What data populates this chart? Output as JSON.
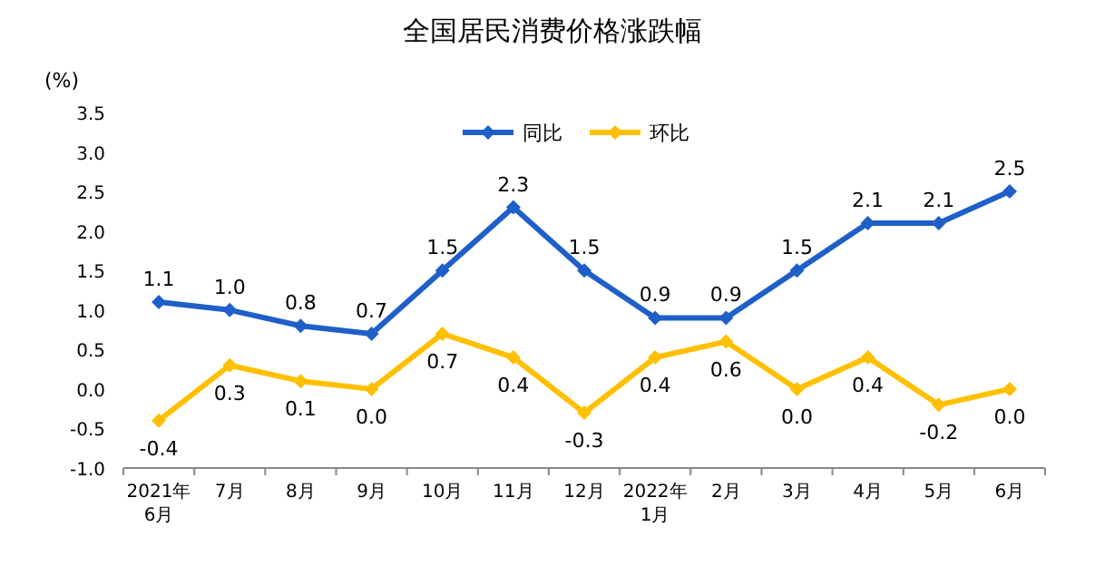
{
  "chart_data": {
    "type": "line",
    "title": "全国居民消费价格涨跌幅",
    "ylabel": "(%)",
    "categories": [
      "2021年\n6月",
      "7月",
      "8月",
      "9月",
      "10月",
      "11月",
      "12月",
      "2022年\n1月",
      "2月",
      "3月",
      "4月",
      "5月",
      "6月"
    ],
    "series": [
      {
        "name": "同比",
        "color": "#1f5fc8",
        "values": [
          1.1,
          1.0,
          0.8,
          0.7,
          1.5,
          2.3,
          1.5,
          0.9,
          0.9,
          1.5,
          2.1,
          2.1,
          2.5
        ],
        "value_labels": [
          "1.1",
          "1.0",
          "0.8",
          "0.7",
          "1.5",
          "2.3",
          "1.5",
          "0.9",
          "0.9",
          "1.5",
          "2.1",
          "2.1",
          "2.5"
        ]
      },
      {
        "name": "环比",
        "color": "#ffc000",
        "values": [
          -0.4,
          0.3,
          0.1,
          0.0,
          0.7,
          0.4,
          -0.3,
          0.4,
          0.6,
          0.0,
          0.4,
          -0.2,
          0.0
        ],
        "value_labels": [
          "-0.4",
          "0.3",
          "0.1",
          "0.0",
          "0.7",
          "0.4",
          "-0.3",
          "0.4",
          "0.6",
          "0.0",
          "0.4",
          "-0.2",
          "0.0"
        ]
      }
    ],
    "ylim": [
      -1,
      3.5
    ],
    "yticks": [
      {
        "value": -1,
        "label": "-1.0"
      },
      {
        "value": -0.5,
        "label": "-0.5"
      },
      {
        "value": 0,
        "label": "0.0"
      },
      {
        "value": 0.5,
        "label": "0.5"
      },
      {
        "value": 1,
        "label": "1.0"
      },
      {
        "value": 1.5,
        "label": "1.5"
      },
      {
        "value": 2,
        "label": "2.0"
      },
      {
        "value": 2.5,
        "label": "2.5"
      },
      {
        "value": 3,
        "label": "3.0"
      },
      {
        "value": 3.5,
        "label": "3.5"
      }
    ],
    "marker": "diamond",
    "legend": "top",
    "grid": false
  }
}
